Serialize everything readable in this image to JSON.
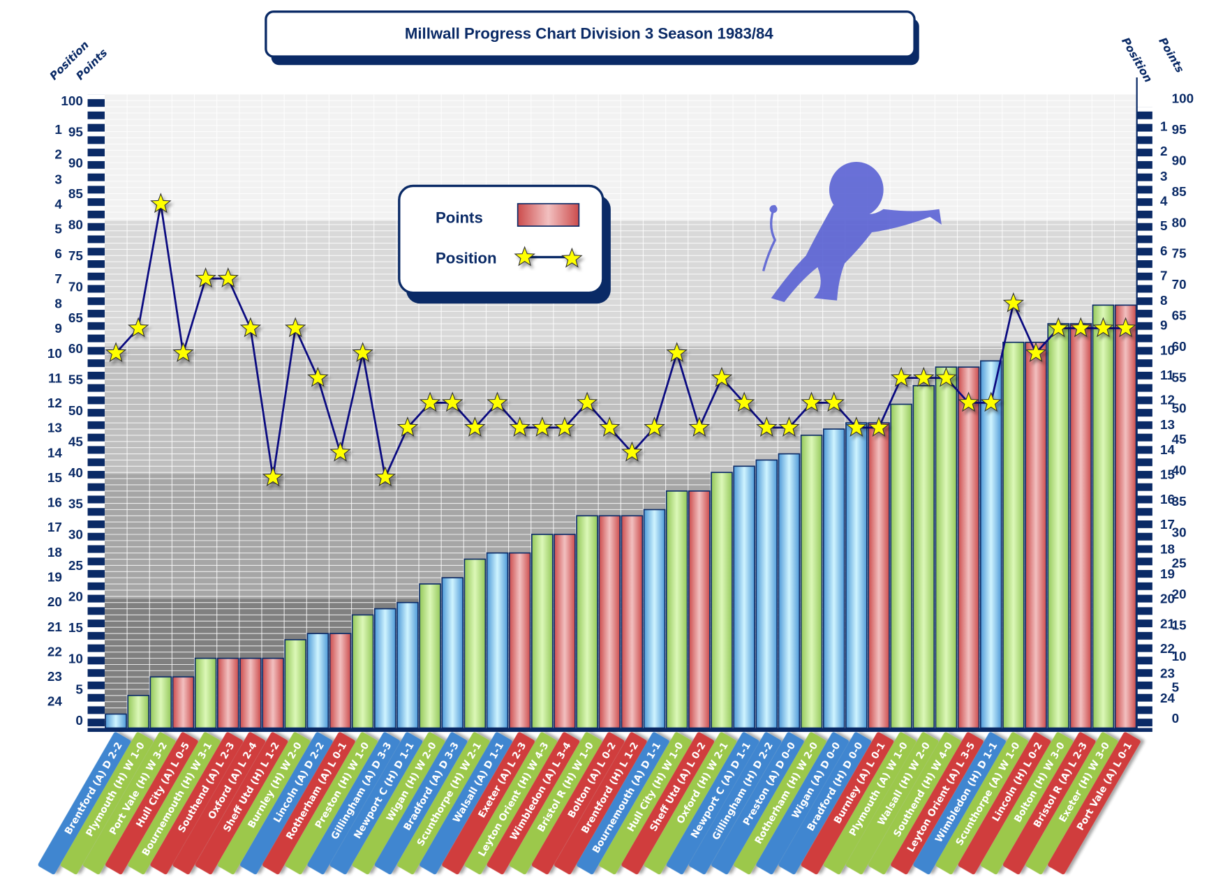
{
  "chart_data": {
    "type": "bar",
    "title": "Millwall Progress Chart Division 3 Season 1983/84",
    "left_axis_labels": {
      "position": "Position",
      "points": "Points"
    },
    "right_axis_labels": {
      "position": "Position",
      "points": "Points"
    },
    "points_axis": {
      "range": [
        0,
        100
      ],
      "ticks": [
        "0",
        "5",
        "10",
        "15",
        "20",
        "25",
        "30",
        "35",
        "40",
        "45",
        "50",
        "55",
        "60",
        "65",
        "70",
        "75",
        "80",
        "85",
        "90",
        "95",
        "100"
      ]
    },
    "position_axis": {
      "range": [
        1,
        24
      ],
      "ticks": [
        "1",
        "2",
        "3",
        "4",
        "5",
        "6",
        "7",
        "8",
        "9",
        "10",
        "11",
        "12",
        "13",
        "14",
        "15",
        "16",
        "17",
        "18",
        "19",
        "20",
        "21",
        "22",
        "23",
        "24"
      ]
    },
    "legend": {
      "points": "Points",
      "position": "Position"
    },
    "colors": {
      "W": "#a6d86a",
      "D": "#6ab8ea",
      "L": "#d86060",
      "navy": "#0a2a66",
      "star": "#ffff00"
    },
    "matches": [
      {
        "label": "Brentford (A) D 2-2",
        "result": "D"
      },
      {
        "label": "Plymouth (H) W 1-0",
        "result": "W"
      },
      {
        "label": "Port Vale (H) W 3-2",
        "result": "W"
      },
      {
        "label": "Hull City (A) L 0-5",
        "result": "L"
      },
      {
        "label": "Bournemouth (H) W 3-1",
        "result": "W"
      },
      {
        "label": "Southend (A) L 2-3",
        "result": "L"
      },
      {
        "label": "Oxford (A) L 2-4",
        "result": "L"
      },
      {
        "label": "Sheff Utd (H) L 1-2",
        "result": "L"
      },
      {
        "label": "Burnley (H) W 2-0",
        "result": "W"
      },
      {
        "label": "Lincoln (A) D 2-2",
        "result": "D"
      },
      {
        "label": "Rotherham (A) L 0-1",
        "result": "L"
      },
      {
        "label": "Preston (H) W 1-0",
        "result": "W"
      },
      {
        "label": "Gillingham (A) D 3-3",
        "result": "D"
      },
      {
        "label": "Newport C (H) D 1-1",
        "result": "D"
      },
      {
        "label": "Wigan (H) W 2-0",
        "result": "W"
      },
      {
        "label": "Bradford (A) D 3-3",
        "result": "D"
      },
      {
        "label": "Scunthorpe (H) W 2-1",
        "result": "W"
      },
      {
        "label": "Walsall (A) D 1-1",
        "result": "D"
      },
      {
        "label": "Exeter (A) L 2-3",
        "result": "L"
      },
      {
        "label": "Leyton Orient (H) W 4-3",
        "result": "W"
      },
      {
        "label": "Wimbledon (A) L 3-4",
        "result": "L"
      },
      {
        "label": "Bristol R (H) W 1-0",
        "result": "W"
      },
      {
        "label": "Bolton (A) L 0-2",
        "result": "L"
      },
      {
        "label": "Brentford (H) L 1-2",
        "result": "L"
      },
      {
        "label": "Bournemouth (A) D 1-1",
        "result": "D"
      },
      {
        "label": "Hull City (H) W 1-0",
        "result": "W"
      },
      {
        "label": "Sheff Utd (A) L 0-2",
        "result": "L"
      },
      {
        "label": "Oxford (H) W 2-1",
        "result": "W"
      },
      {
        "label": "Newport C (A) D 1-1",
        "result": "D"
      },
      {
        "label": "Gillingham (H) D 2-2",
        "result": "D"
      },
      {
        "label": "Preston (A) D 0-0",
        "result": "D"
      },
      {
        "label": "Rotherham (H) W 2-0",
        "result": "W"
      },
      {
        "label": "Wigan (A) D 0-0",
        "result": "D"
      },
      {
        "label": "Bradford (H) D 0-0",
        "result": "D"
      },
      {
        "label": "Burnley (A) L 0-1",
        "result": "L"
      },
      {
        "label": "Plymouth (A) W 1-0",
        "result": "W"
      },
      {
        "label": "Walsall (H) W 2-0",
        "result": "W"
      },
      {
        "label": "Southend (H) W 4-0",
        "result": "W"
      },
      {
        "label": "Leyton Orient (A) L 3-5",
        "result": "L"
      },
      {
        "label": "Wimbledon (H) D 1-1",
        "result": "D"
      },
      {
        "label": "Scunthorpe (A) W 1-0",
        "result": "W"
      },
      {
        "label": "Lincoln (H) L 0-2",
        "result": "L"
      },
      {
        "label": "Bolton (H) W 3-0",
        "result": "W"
      },
      {
        "label": "Bristol R (A) L 2-3",
        "result": "L"
      },
      {
        "label": "Exeter (H) W 3-0",
        "result": "W"
      },
      {
        "label": "Port Vale (A) L 0-1",
        "result": "L"
      }
    ],
    "series": [
      {
        "name": "Points",
        "type": "bar",
        "values": [
          1,
          4,
          7,
          7,
          10,
          10,
          10,
          10,
          13,
          14,
          14,
          17,
          18,
          19,
          22,
          23,
          26,
          27,
          27,
          30,
          30,
          33,
          33,
          33,
          34,
          37,
          37,
          40,
          41,
          42,
          43,
          46,
          47,
          48,
          48,
          51,
          54,
          57,
          57,
          58,
          61,
          61,
          64,
          64,
          67,
          67
        ]
      },
      {
        "name": "Position",
        "type": "line",
        "values": [
          10,
          9,
          4,
          10,
          7,
          7,
          9,
          15,
          9,
          11,
          14,
          10,
          15,
          13,
          12,
          12,
          13,
          12,
          13,
          13,
          13,
          12,
          13,
          14,
          13,
          10,
          13,
          11,
          12,
          13,
          13,
          12,
          12,
          13,
          13,
          11,
          11,
          11,
          12,
          12,
          8,
          10,
          9,
          9,
          9,
          9
        ]
      }
    ]
  }
}
